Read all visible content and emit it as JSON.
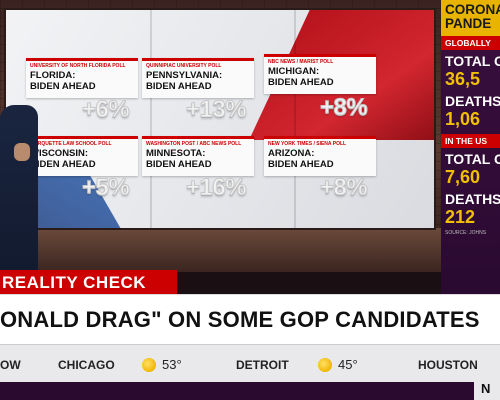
{
  "video_wall": {
    "cards": [
      {
        "source": "University of North Florida Poll",
        "state": "FLORIDA:\nBIDEN AHEAD",
        "margin": "+6%"
      },
      {
        "source": "Quinnipiac University Poll",
        "state": "PENNSYLVANIA:\nBIDEN AHEAD",
        "margin": "+13%"
      },
      {
        "source": "NBC News / Marist Poll",
        "state": "MICHIGAN:\nBIDEN AHEAD",
        "margin": "+8%"
      },
      {
        "source": "Marquette Law School Poll",
        "state": "WISCONSIN:\nBIDEN AHEAD",
        "margin": "+5%"
      },
      {
        "source": "Washington Post / ABC News Poll",
        "state": "MINNESOTA:\nBIDEN AHEAD",
        "margin": "+16%"
      },
      {
        "source": "New York Times / Siena Poll",
        "state": "ARIZONA:\nBIDEN AHEAD",
        "margin": "+8%"
      }
    ]
  },
  "sidebar": {
    "header": "CORONA\nPANDE",
    "global_label": "GLOBALLY",
    "total_label": "TOTAL C",
    "total_value": "36,5",
    "deaths_label": "DEATHS",
    "deaths_value": "1,06",
    "us_label": "IN THE US",
    "us_total_label": "TOTAL C",
    "us_total_value": "7,60",
    "us_deaths_label": "DEATHS",
    "us_deaths_value": "212",
    "source": "SOURCE: JOHNS"
  },
  "lower_third": {
    "segment": "REALITY CHECK",
    "headline": "ONALD DRAG\" ON SOME GOP CANDIDATES"
  },
  "ticker": {
    "items": [
      {
        "city": "OW"
      },
      {
        "city": "CHICAGO",
        "temp": "53°"
      },
      {
        "city": "DETROIT",
        "temp": "45°"
      },
      {
        "city": "HOUSTON"
      }
    ]
  },
  "network_logo": "N"
}
